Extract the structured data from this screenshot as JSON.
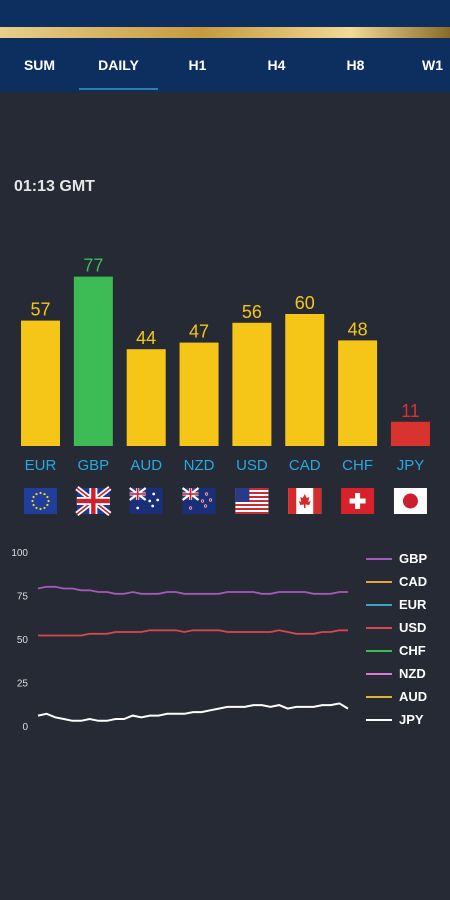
{
  "tabs": [
    {
      "label": "SUM",
      "active": false
    },
    {
      "label": "DAILY",
      "active": true
    },
    {
      "label": "H1",
      "active": false
    },
    {
      "label": "H4",
      "active": false
    },
    {
      "label": "H8",
      "active": false
    },
    {
      "label": "W1",
      "active": false
    }
  ],
  "time": "01:13 GMT",
  "colors": {
    "background": "#262a35",
    "header": "#0d2f5f",
    "bar_default": "#f5c518",
    "bar_high": "#3dbb55",
    "bar_low": "#d9332f",
    "label_blue": "#29a8e0"
  },
  "flags": [
    "eu-flag-icon",
    "uk-flag-icon",
    "australia-flag-icon",
    "new-zealand-flag-icon",
    "usa-flag-icon",
    "canada-flag-icon",
    "switzerland-flag-icon",
    "japan-flag-icon"
  ],
  "chart_data": [
    {
      "type": "bar",
      "categories": [
        "EUR",
        "GBP",
        "AUD",
        "NZD",
        "USD",
        "CAD",
        "CHF",
        "JPY"
      ],
      "values": [
        57,
        77,
        44,
        47,
        56,
        60,
        48,
        11
      ],
      "ylim": [
        0,
        100
      ]
    },
    {
      "type": "line",
      "yticks": [
        100,
        75,
        50,
        25,
        0
      ],
      "ylim": [
        0,
        100
      ],
      "legend": "right",
      "series": [
        {
          "name": "GBP",
          "color": "#a45ab8",
          "values": [
            79,
            80,
            80,
            79,
            79,
            78,
            78,
            77,
            77,
            76,
            76,
            77,
            76,
            76,
            76,
            77,
            77,
            76,
            76,
            76,
            76,
            76,
            77,
            77,
            77,
            77,
            76,
            76,
            77,
            77,
            77,
            77,
            76,
            76,
            76,
            77,
            77
          ]
        },
        {
          "name": "CAD",
          "color": "#e8a33c",
          "values": []
        },
        {
          "name": "EUR",
          "color": "#38a6c9",
          "values": []
        },
        {
          "name": "USD",
          "color": "#d9474e",
          "values": [
            52,
            52,
            52,
            52,
            52,
            52,
            53,
            53,
            53,
            54,
            54,
            54,
            54,
            55,
            55,
            55,
            55,
            54,
            55,
            55,
            55,
            55,
            54,
            54,
            54,
            54,
            54,
            54,
            55,
            54,
            53,
            53,
            53,
            54,
            54,
            55,
            55
          ]
        },
        {
          "name": "CHF",
          "color": "#3dbb55",
          "values": []
        },
        {
          "name": "NZD",
          "color": "#d97ad6",
          "values": []
        },
        {
          "name": "AUD",
          "color": "#e0b530",
          "values": []
        },
        {
          "name": "JPY",
          "color": "#ffffff",
          "values": [
            6,
            7,
            5,
            4,
            3,
            3,
            4,
            3,
            3,
            4,
            4,
            6,
            5,
            6,
            6,
            7,
            7,
            7,
            8,
            8,
            9,
            10,
            11,
            11,
            11,
            12,
            12,
            11,
            12,
            10,
            11,
            11,
            11,
            12,
            12,
            13,
            10
          ]
        }
      ]
    }
  ]
}
